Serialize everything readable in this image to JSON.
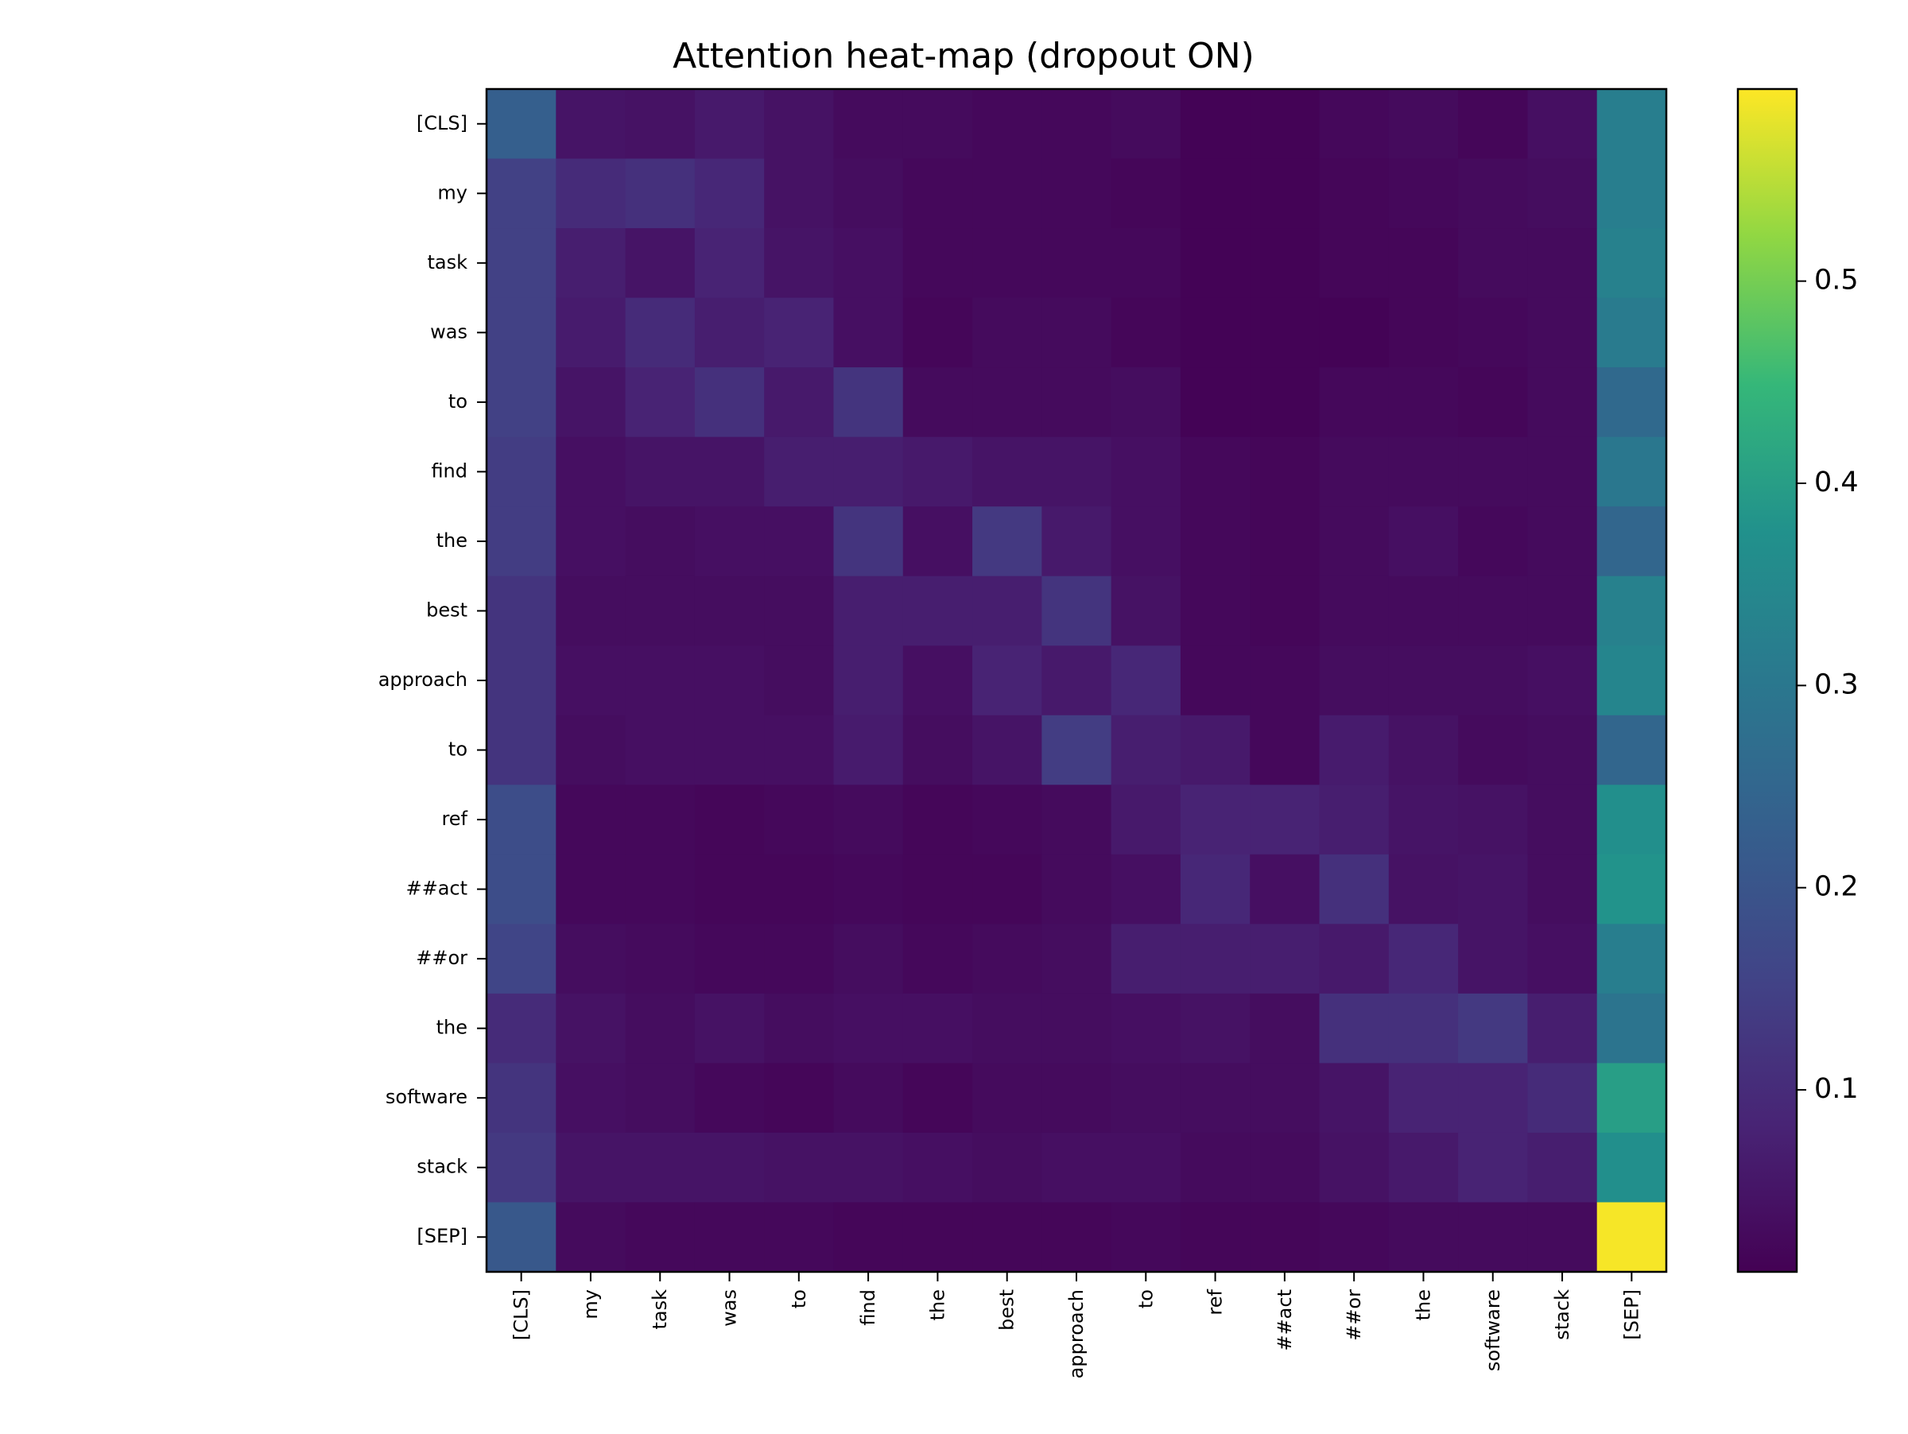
{
  "chart_data": {
    "type": "heatmap",
    "title": "Attention heat-map (dropout ON)",
    "xlabel": "",
    "ylabel": "",
    "colormap": "viridis",
    "color_range": [
      0.01,
      0.595
    ],
    "tokens": [
      "[CLS]",
      "my",
      "task",
      "was",
      "to",
      "find",
      "the",
      "best",
      "approach",
      "to",
      "ref",
      "##act",
      "##or",
      "the",
      "software",
      "stack",
      "[SEP]"
    ],
    "colorbar_ticks": [
      0.1,
      0.2,
      0.3,
      0.4,
      0.5
    ],
    "colorbar_tick_labels": [
      "0.1",
      "0.2",
      "0.3",
      "0.4",
      "0.5"
    ],
    "values": [
      [
        0.23,
        0.05,
        0.045,
        0.06,
        0.045,
        0.03,
        0.03,
        0.025,
        0.025,
        0.03,
        0.015,
        0.015,
        0.025,
        0.03,
        0.02,
        0.04,
        0.32
      ],
      [
        0.15,
        0.1,
        0.11,
        0.09,
        0.045,
        0.035,
        0.025,
        0.025,
        0.025,
        0.02,
        0.015,
        0.015,
        0.02,
        0.025,
        0.03,
        0.035,
        0.32
      ],
      [
        0.15,
        0.07,
        0.05,
        0.08,
        0.05,
        0.04,
        0.025,
        0.025,
        0.025,
        0.025,
        0.015,
        0.015,
        0.02,
        0.02,
        0.03,
        0.03,
        0.33
      ],
      [
        0.15,
        0.065,
        0.1,
        0.07,
        0.08,
        0.04,
        0.02,
        0.03,
        0.03,
        0.02,
        0.015,
        0.015,
        0.015,
        0.02,
        0.025,
        0.03,
        0.31
      ],
      [
        0.15,
        0.05,
        0.08,
        0.11,
        0.06,
        0.12,
        0.03,
        0.03,
        0.03,
        0.035,
        0.015,
        0.015,
        0.025,
        0.025,
        0.02,
        0.03,
        0.26
      ],
      [
        0.14,
        0.04,
        0.05,
        0.05,
        0.07,
        0.07,
        0.06,
        0.05,
        0.05,
        0.04,
        0.025,
        0.02,
        0.03,
        0.03,
        0.03,
        0.03,
        0.3
      ],
      [
        0.14,
        0.04,
        0.035,
        0.04,
        0.04,
        0.12,
        0.04,
        0.13,
        0.06,
        0.04,
        0.025,
        0.02,
        0.03,
        0.04,
        0.025,
        0.03,
        0.25
      ],
      [
        0.12,
        0.035,
        0.035,
        0.035,
        0.035,
        0.07,
        0.07,
        0.07,
        0.12,
        0.045,
        0.025,
        0.02,
        0.03,
        0.03,
        0.03,
        0.03,
        0.33
      ],
      [
        0.12,
        0.04,
        0.04,
        0.04,
        0.035,
        0.07,
        0.04,
        0.08,
        0.06,
        0.09,
        0.025,
        0.025,
        0.035,
        0.035,
        0.035,
        0.04,
        0.34
      ],
      [
        0.12,
        0.035,
        0.04,
        0.04,
        0.04,
        0.065,
        0.035,
        0.05,
        0.14,
        0.07,
        0.06,
        0.025,
        0.065,
        0.045,
        0.03,
        0.035,
        0.25
      ],
      [
        0.18,
        0.025,
        0.025,
        0.02,
        0.025,
        0.03,
        0.02,
        0.025,
        0.03,
        0.06,
        0.08,
        0.08,
        0.07,
        0.05,
        0.045,
        0.035,
        0.37
      ],
      [
        0.18,
        0.025,
        0.025,
        0.02,
        0.02,
        0.025,
        0.02,
        0.02,
        0.03,
        0.04,
        0.09,
        0.04,
        0.11,
        0.045,
        0.05,
        0.035,
        0.38
      ],
      [
        0.16,
        0.035,
        0.03,
        0.025,
        0.025,
        0.035,
        0.025,
        0.03,
        0.035,
        0.07,
        0.07,
        0.07,
        0.06,
        0.09,
        0.05,
        0.04,
        0.32
      ],
      [
        0.1,
        0.045,
        0.035,
        0.045,
        0.035,
        0.04,
        0.04,
        0.035,
        0.035,
        0.04,
        0.045,
        0.035,
        0.11,
        0.11,
        0.13,
        0.07,
        0.29
      ],
      [
        0.12,
        0.04,
        0.035,
        0.025,
        0.02,
        0.03,
        0.02,
        0.03,
        0.03,
        0.035,
        0.035,
        0.035,
        0.05,
        0.08,
        0.08,
        0.1,
        0.4
      ],
      [
        0.13,
        0.05,
        0.05,
        0.05,
        0.045,
        0.045,
        0.04,
        0.035,
        0.04,
        0.04,
        0.03,
        0.03,
        0.045,
        0.06,
        0.08,
        0.07,
        0.37
      ],
      [
        0.21,
        0.03,
        0.025,
        0.025,
        0.025,
        0.02,
        0.02,
        0.02,
        0.02,
        0.025,
        0.02,
        0.02,
        0.025,
        0.03,
        0.03,
        0.03,
        0.59
      ]
    ]
  }
}
